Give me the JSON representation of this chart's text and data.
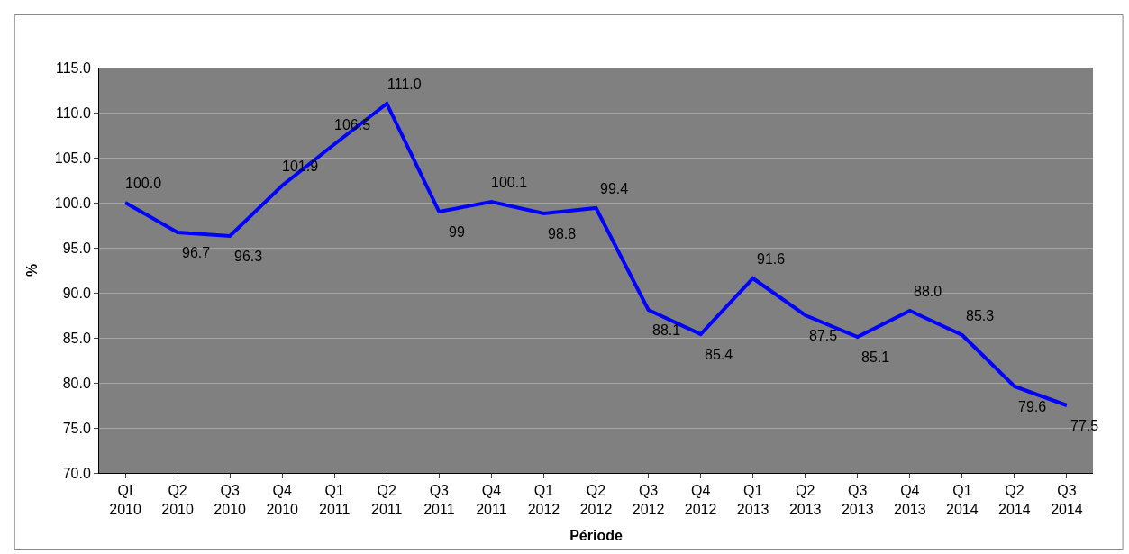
{
  "chart_data": {
    "type": "line",
    "xlabel": "Période",
    "ylabel": "%",
    "categories": [
      "QI 2010",
      "Q2 2010",
      "Q3 2010",
      "Q4 2010",
      "Q1 2011",
      "Q2 2011",
      "Q3 2011",
      "Q4 2011",
      "Q1 2012",
      "Q2 2012",
      "Q3 2012",
      "Q4 2012",
      "Q1 2013",
      "Q2 2013",
      "Q3 2013",
      "Q4 2013",
      "Q1 2014",
      "Q2 2014",
      "Q3 2014"
    ],
    "series": [
      {
        "color": "#0000ff",
        "values": [
          100.0,
          96.7,
          96.3,
          101.9,
          106.5,
          111.0,
          99,
          100.1,
          98.8,
          99.4,
          88.1,
          85.4,
          91.6,
          87.5,
          85.1,
          88.0,
          85.3,
          79.6,
          77.5
        ],
        "value_labels": [
          "100.0",
          "96.7",
          "96.3",
          "101.9",
          "106.5",
          "111.0",
          "99",
          "100.1",
          "98.8",
          "99.4",
          "88.1",
          "85.4",
          "91.6",
          "87.5",
          "85.1",
          "88.0",
          "85.3",
          "79.6",
          "77.5"
        ]
      }
    ],
    "ylim": [
      70,
      115
    ],
    "yticks": [
      {
        "value": 70,
        "label": "70.0"
      },
      {
        "value": 75,
        "label": "75.0"
      },
      {
        "value": 80,
        "label": "80.0"
      },
      {
        "value": 85,
        "label": "85.0"
      },
      {
        "value": 90,
        "label": "90.0"
      },
      {
        "value": 95,
        "label": "95.0"
      },
      {
        "value": 100,
        "label": "100.0"
      },
      {
        "value": 105,
        "label": "105.0"
      },
      {
        "value": 110,
        "label": "110.0"
      },
      {
        "value": 115,
        "label": "115.0"
      }
    ],
    "grid": "y",
    "marker": "none",
    "line_style": "solid"
  }
}
